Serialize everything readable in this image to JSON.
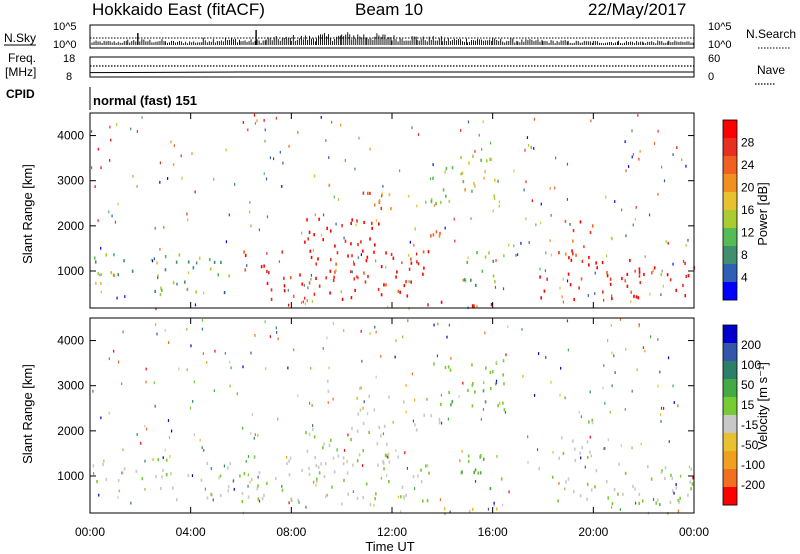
{
  "header": {
    "station": "Hokkaido East (fitACF)",
    "beam": "Beam 10",
    "date": "22/May/2017"
  },
  "noise_panel": {
    "left_label": "N.Sky",
    "right_label": "N.Search",
    "left_ticks": [
      "10^5",
      "10^0"
    ],
    "right_ticks": [
      "10^5",
      "10^0"
    ]
  },
  "freq_panel": {
    "left_label_1": "Freq.",
    "left_label_2": "[MHz]",
    "right_label": "Nave",
    "left_ticks": [
      "18",
      "8"
    ],
    "right_ticks": [
      "60",
      "0"
    ]
  },
  "cpid": {
    "label": "CPID",
    "value": "normal (fast) 151"
  },
  "power_panel": {
    "ylabel": "Slant Range [km]",
    "yticks": [
      "1000",
      "2000",
      "3000",
      "4000"
    ],
    "colorbar_label": "Power [dB]",
    "colorbar_ticks": [
      "4",
      "8",
      "12",
      "16",
      "20",
      "24",
      "28"
    ],
    "colors": [
      "#0000ff",
      "#2f5fb5",
      "#3f8f6f",
      "#55bb55",
      "#aacc33",
      "#e8c030",
      "#f09020",
      "#f06020",
      "#e83020",
      "#ff0000"
    ]
  },
  "velocity_panel": {
    "ylabel": "Slant Range [km]",
    "yticks": [
      "1000",
      "2000",
      "3000",
      "4000"
    ],
    "colorbar_label": "Velocity [m s⁻¹]",
    "colorbar_ticks": [
      "200",
      "100",
      "50",
      "15",
      "-15",
      "-50",
      "-100",
      "-200"
    ],
    "colors": [
      "#0000cc",
      "#3355aa",
      "#2e7f6a",
      "#44aa44",
      "#77cc33",
      "#c8c8c8",
      "#e8c030",
      "#f0a020",
      "#f07020",
      "#ff0000"
    ]
  },
  "x_axis": {
    "ticks": [
      "00:00",
      "04:00",
      "08:00",
      "12:00",
      "16:00",
      "20:00",
      "00:00"
    ],
    "label": "Time UT"
  },
  "chart_data": {
    "type": "heatmap",
    "title": "Hokkaido East (fitACF)",
    "x_unit": "hours UT",
    "xlim": [
      0,
      24
    ],
    "ylim": [
      180,
      4500
    ],
    "xlabel": "Time UT",
    "ylabel": "Slant Range [km]",
    "power_clim": [
      0,
      30
    ],
    "velocity_clim": [
      -250,
      250
    ],
    "noise_sky_segments": [
      [
        0,
        0.3
      ],
      [
        1.5,
        0.4
      ],
      [
        3,
        0.3
      ],
      [
        4.5,
        0.5
      ],
      [
        6,
        0.4
      ],
      [
        7,
        0.6
      ],
      [
        8,
        0.7
      ],
      [
        9,
        0.8
      ],
      [
        10,
        0.9
      ],
      [
        11,
        0.8
      ],
      [
        12,
        0.7
      ],
      [
        13,
        0.6
      ],
      [
        14,
        0.5
      ],
      [
        15,
        0.5
      ],
      [
        16,
        0.45
      ],
      [
        17,
        0.4
      ],
      [
        18,
        0.35
      ],
      [
        19,
        0.3
      ],
      [
        20,
        0.3
      ],
      [
        21,
        0.3
      ],
      [
        22,
        0.3
      ],
      [
        23,
        0.3
      ],
      [
        24,
        0.3
      ]
    ],
    "frequency_mhz_segments": [
      [
        0,
        10.2
      ],
      [
        6,
        10.5
      ],
      [
        24,
        10.5
      ]
    ],
    "scatter_regions": [
      {
        "t0": 0.0,
        "t1": 6.0,
        "r0": 900,
        "r1": 1400,
        "power": 11,
        "velocity": -15
      },
      {
        "t0": 2.5,
        "t1": 6.0,
        "r0": 500,
        "r1": 800,
        "power": 10,
        "velocity": -15
      },
      {
        "t0": 6.0,
        "t1": 13.5,
        "r0": 400,
        "r1": 1500,
        "power": 27,
        "velocity": -10
      },
      {
        "t0": 8.5,
        "t1": 12.0,
        "r0": 1200,
        "r1": 2200,
        "power": 29,
        "velocity": -10
      },
      {
        "t0": 8.8,
        "t1": 9.6,
        "r0": 2900,
        "r1": 3200,
        "power": 19,
        "velocity": -40
      },
      {
        "t0": 10.5,
        "t1": 12.5,
        "r0": 2400,
        "r1": 3000,
        "power": 21,
        "velocity": -40
      },
      {
        "t0": 12.8,
        "t1": 14.0,
        "r0": 1800,
        "r1": 2400,
        "power": 22,
        "velocity": -40
      },
      {
        "t0": 13.5,
        "t1": 16.5,
        "r0": 2500,
        "r1": 3600,
        "power": 14,
        "velocity": 30
      },
      {
        "t0": 14.5,
        "t1": 16.5,
        "r0": 700,
        "r1": 1500,
        "power": 12,
        "velocity": 40
      },
      {
        "t0": 17.8,
        "t1": 24.0,
        "r0": 400,
        "r1": 1300,
        "power": 28,
        "velocity": -10
      },
      {
        "t0": 18.5,
        "t1": 20.0,
        "r0": 1300,
        "r1": 2300,
        "power": 24,
        "velocity": -15
      },
      {
        "t0": 12.5,
        "t1": 16.5,
        "r0": 250,
        "r1": 400,
        "power": 27,
        "velocity": -60
      }
    ]
  }
}
